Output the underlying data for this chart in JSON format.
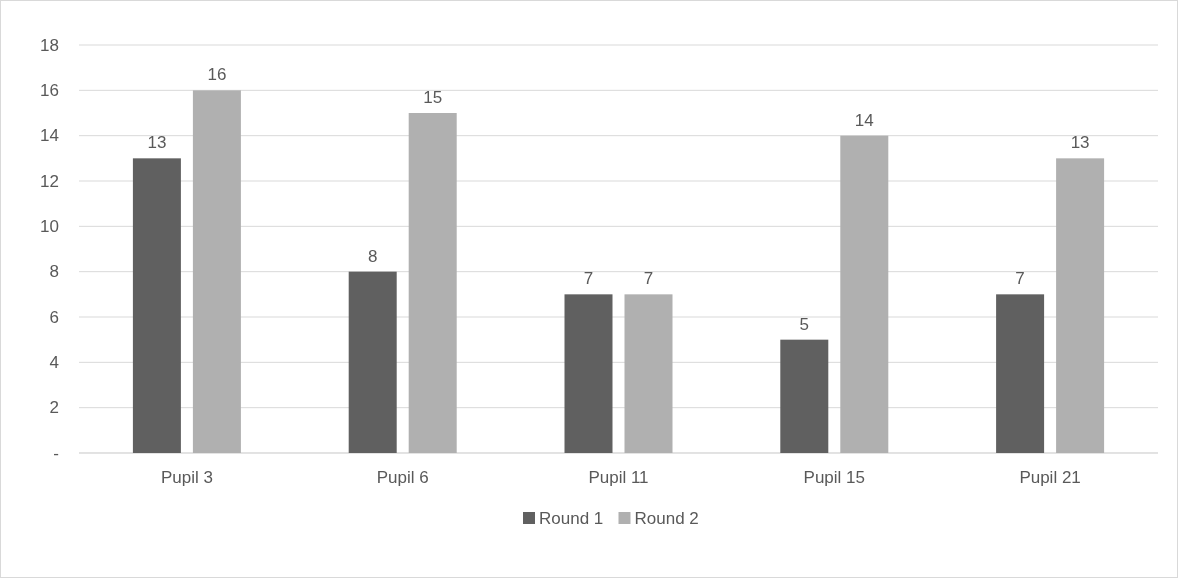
{
  "chart_data": {
    "type": "bar",
    "categories": [
      "Pupil 3",
      "Pupil 6",
      "Pupil 11",
      "Pupil 15",
      "Pupil 21"
    ],
    "series": [
      {
        "name": "Round 1",
        "color": "#606060",
        "values": [
          13,
          8,
          7,
          5,
          7
        ]
      },
      {
        "name": "Round 2",
        "color": "#b0b0b0",
        "values": [
          16,
          15,
          7,
          14,
          13
        ]
      }
    ],
    "ylim": [
      0,
      18
    ],
    "yticks": [
      {
        "value": 0,
        "label": "-"
      },
      2,
      4,
      6,
      8,
      10,
      12,
      14,
      16,
      18
    ],
    "grid": "y",
    "legend": "bottom",
    "data_labels": true
  }
}
